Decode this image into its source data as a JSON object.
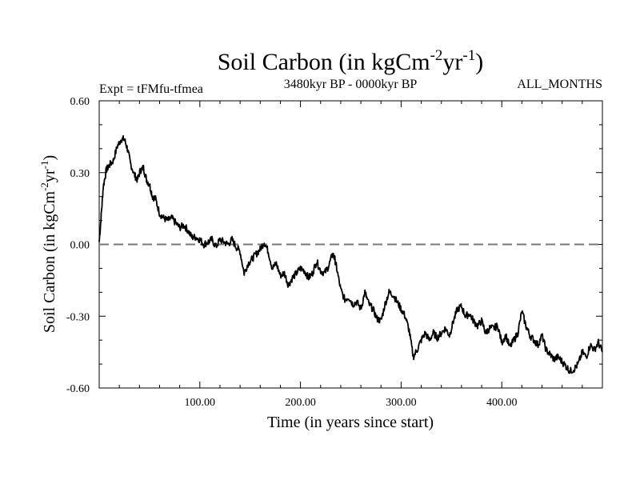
{
  "chart_data": {
    "type": "line",
    "title": "Soil Carbon (in kgCm",
    "title_sup1": "-2",
    "title_mid": "yr",
    "title_sup2": "-1",
    "title_end": ")",
    "subtitle_left": "Expt = tFMfu-tfmea",
    "subtitle_center": "3480kyr BP - 0000kyr BP",
    "subtitle_right": "ALL_MONTHS",
    "xlabel": "Time (in years since start)",
    "ylabel": "Soil Carbon (in kgCm",
    "ylabel_sup1": "-2",
    "ylabel_mid": "yr",
    "ylabel_sup2": "-1",
    "ylabel_end": ")",
    "xlim": [
      0,
      500
    ],
    "ylim": [
      -0.6,
      0.6
    ],
    "x_ticks": [
      100,
      200,
      300,
      400
    ],
    "x_tick_labels": [
      "100.00",
      "200.00",
      "300.00",
      "400.00"
    ],
    "y_ticks": [
      0.6,
      0.3,
      0.0,
      -0.3,
      -0.6
    ],
    "y_tick_labels": [
      "0.60",
      "0.30",
      "0.00",
      "-0.30",
      "-0.60"
    ],
    "reference_line": 0.0,
    "series": [
      {
        "name": "Soil Carbon",
        "x": [
          0,
          2,
          4,
          7,
          10,
          14,
          18,
          22,
          25,
          28,
          31,
          35,
          38,
          41,
          44,
          47,
          50,
          53,
          56,
          60,
          64,
          68,
          72,
          76,
          80,
          84,
          88,
          92,
          96,
          100,
          104,
          108,
          112,
          116,
          120,
          124,
          128,
          132,
          136,
          140,
          144,
          148,
          152,
          156,
          160,
          164,
          168,
          172,
          176,
          180,
          184,
          188,
          192,
          196,
          200,
          204,
          208,
          212,
          216,
          220,
          224,
          228,
          232,
          234,
          236,
          240,
          244,
          248,
          252,
          256,
          260,
          264,
          268,
          272,
          276,
          280,
          284,
          288,
          292,
          296,
          300,
          304,
          308,
          312,
          316,
          320,
          324,
          328,
          332,
          336,
          340,
          344,
          348,
          352,
          356,
          360,
          364,
          368,
          372,
          376,
          380,
          384,
          388,
          392,
          396,
          400,
          404,
          408,
          412,
          416,
          420,
          424,
          428,
          432,
          436,
          440,
          444,
          448,
          452,
          456,
          460,
          464,
          468,
          472,
          476,
          480,
          484,
          488,
          492,
          496,
          500
        ],
        "values": [
          0.01,
          0.12,
          0.24,
          0.31,
          0.33,
          0.35,
          0.41,
          0.44,
          0.44,
          0.4,
          0.34,
          0.29,
          0.27,
          0.31,
          0.32,
          0.27,
          0.25,
          0.2,
          0.19,
          0.13,
          0.11,
          0.1,
          0.11,
          0.09,
          0.07,
          0.08,
          0.06,
          0.03,
          0.03,
          0.02,
          0.0,
          0.01,
          0.02,
          -0.01,
          0.02,
          0.01,
          0.0,
          0.02,
          -0.01,
          -0.03,
          -0.12,
          -0.08,
          -0.06,
          -0.04,
          -0.02,
          0.01,
          -0.03,
          -0.1,
          -0.08,
          -0.13,
          -0.12,
          -0.17,
          -0.14,
          -0.12,
          -0.1,
          -0.11,
          -0.14,
          -0.12,
          -0.07,
          -0.11,
          -0.12,
          -0.09,
          -0.04,
          -0.06,
          -0.1,
          -0.19,
          -0.23,
          -0.22,
          -0.25,
          -0.24,
          -0.27,
          -0.2,
          -0.25,
          -0.27,
          -0.31,
          -0.32,
          -0.25,
          -0.2,
          -0.21,
          -0.24,
          -0.27,
          -0.3,
          -0.36,
          -0.47,
          -0.44,
          -0.4,
          -0.37,
          -0.4,
          -0.37,
          -0.39,
          -0.37,
          -0.35,
          -0.38,
          -0.32,
          -0.27,
          -0.26,
          -0.3,
          -0.29,
          -0.32,
          -0.34,
          -0.32,
          -0.37,
          -0.35,
          -0.35,
          -0.34,
          -0.41,
          -0.38,
          -0.43,
          -0.4,
          -0.37,
          -0.28,
          -0.34,
          -0.38,
          -0.4,
          -0.42,
          -0.38,
          -0.44,
          -0.46,
          -0.48,
          -0.47,
          -0.49,
          -0.51,
          -0.53,
          -0.52,
          -0.5,
          -0.45,
          -0.47,
          -0.42,
          -0.44,
          -0.41,
          -0.45
        ]
      }
    ]
  }
}
